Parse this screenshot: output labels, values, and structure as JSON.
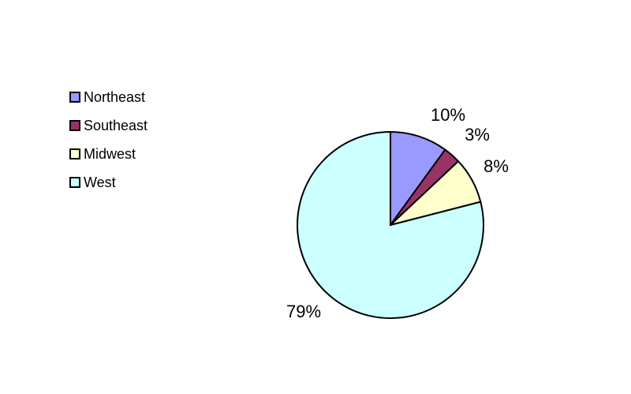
{
  "chart_data": {
    "type": "pie",
    "categories": [
      "Northeast",
      "Southeast",
      "Midwest",
      "West"
    ],
    "values": [
      10,
      3,
      8,
      79
    ],
    "labels": [
      "10%",
      "3%",
      "8%",
      "79%"
    ],
    "colors": [
      "#9999FF",
      "#993366",
      "#FFFFCC",
      "#CCFFFF"
    ],
    "legend_position": "left",
    "start_angle": "top, clockwise"
  }
}
